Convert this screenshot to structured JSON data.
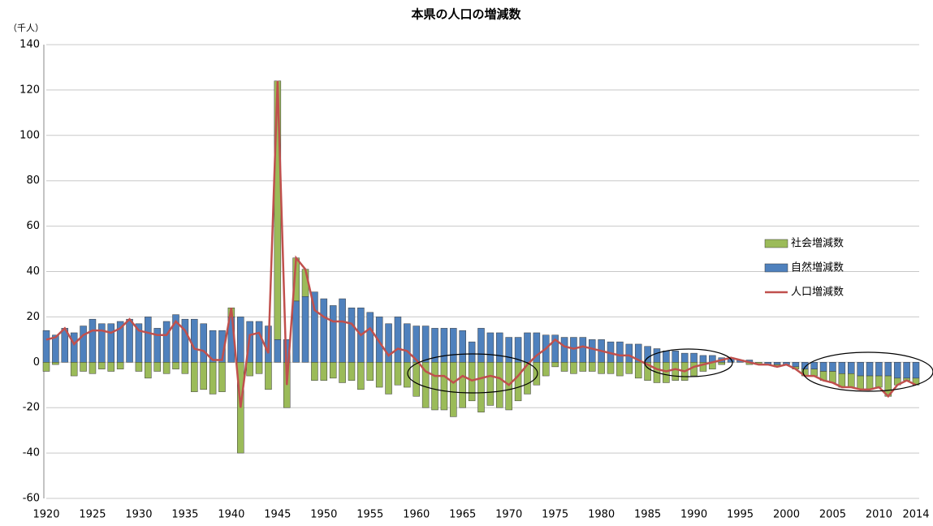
{
  "chart_data": {
    "type": "bar-line",
    "title": "本県の人口の増減数",
    "y_label": "（千人）",
    "x": [
      1920,
      1921,
      1922,
      1923,
      1924,
      1925,
      1926,
      1927,
      1928,
      1929,
      1930,
      1931,
      1932,
      1933,
      1934,
      1935,
      1936,
      1937,
      1938,
      1939,
      1940,
      1941,
      1942,
      1943,
      1944,
      1945,
      1946,
      1947,
      1948,
      1949,
      1950,
      1951,
      1952,
      1953,
      1954,
      1955,
      1956,
      1957,
      1958,
      1959,
      1960,
      1961,
      1962,
      1963,
      1964,
      1965,
      1966,
      1967,
      1968,
      1969,
      1970,
      1971,
      1972,
      1973,
      1974,
      1975,
      1976,
      1977,
      1978,
      1979,
      1980,
      1981,
      1982,
      1983,
      1984,
      1985,
      1986,
      1987,
      1988,
      1989,
      1990,
      1991,
      1992,
      1993,
      1994,
      1995,
      1996,
      1997,
      1998,
      1999,
      2000,
      2001,
      2002,
      2003,
      2004,
      2005,
      2006,
      2007,
      2008,
      2009,
      2010,
      2011,
      2012,
      2013,
      2014
    ],
    "series": [
      {
        "name": "社会増減数",
        "type": "bar",
        "color": "#9bbb59",
        "values": [
          -4,
          -1,
          0,
          -6,
          -4,
          -5,
          -3,
          -4,
          -3,
          0,
          -4,
          -7,
          -4,
          -5,
          -3,
          -5,
          -13,
          -12,
          -14,
          -13,
          4,
          -40,
          -6,
          -5,
          -12,
          114,
          -20,
          19,
          12,
          -8,
          -8,
          -7,
          -9,
          -8,
          -12,
          -8,
          -11,
          -14,
          -10,
          -11,
          -15,
          -20,
          -21,
          -21,
          -24,
          -20,
          -17,
          -22,
          -19,
          -20,
          -21,
          -17,
          -14,
          -10,
          -6,
          -2,
          -4,
          -5,
          -4,
          -4,
          -5,
          -5,
          -6,
          -5,
          -7,
          -8,
          -9,
          -9,
          -8,
          -8,
          -6,
          -4,
          -3,
          -1,
          0,
          0,
          -1,
          -1,
          0,
          -1,
          0,
          -1,
          -3,
          -3,
          -4,
          -5,
          -6,
          -6,
          -6,
          -6,
          -5,
          -9,
          -3,
          -1,
          -3
        ]
      },
      {
        "name": "自然増減数",
        "type": "bar",
        "color": "#4f81bd",
        "values": [
          14,
          12,
          15,
          13,
          16,
          19,
          17,
          17,
          18,
          19,
          17,
          20,
          15,
          18,
          21,
          19,
          19,
          17,
          14,
          14,
          20,
          20,
          18,
          18,
          16,
          10,
          10,
          27,
          29,
          31,
          28,
          25,
          28,
          24,
          24,
          22,
          20,
          17,
          20,
          17,
          16,
          16,
          15,
          15,
          15,
          14,
          9,
          15,
          13,
          13,
          11,
          11,
          13,
          13,
          12,
          12,
          11,
          11,
          11,
          10,
          10,
          9,
          9,
          8,
          8,
          7,
          6,
          5,
          5,
          4,
          4,
          3,
          3,
          2,
          2,
          1,
          1,
          0,
          -1,
          -1,
          -1,
          -2,
          -3,
          -3,
          -4,
          -4,
          -5,
          -5,
          -6,
          -6,
          -6,
          -6,
          -7,
          -7,
          -7
        ]
      },
      {
        "name": "人口増減数",
        "type": "line",
        "color": "#c0504d",
        "values": [
          10,
          11,
          15,
          8,
          12,
          14,
          14,
          13,
          15,
          19,
          14,
          13,
          12,
          12,
          18,
          14,
          6,
          5,
          1,
          1,
          24,
          -20,
          12,
          13,
          4,
          124,
          -10,
          46,
          41,
          23,
          20,
          18,
          18,
          17,
          12,
          15,
          9,
          3,
          6,
          5,
          1,
          -4,
          -6,
          -6,
          -9,
          -6,
          -8,
          -7,
          -6,
          -7,
          -10,
          -6,
          -1,
          3,
          6,
          10,
          7,
          6,
          7,
          6,
          5,
          4,
          3,
          3,
          1,
          -1,
          -3,
          -4,
          -3,
          -4,
          -2,
          -1,
          0,
          1,
          2,
          1,
          0,
          -1,
          -1,
          -2,
          -1,
          -3,
          -6,
          -6,
          -8,
          -9,
          -11,
          -11,
          -12,
          -12,
          -11,
          -15,
          -10,
          -8,
          -10
        ]
      }
    ],
    "xlim": [
      1920,
      2014
    ],
    "xticks": [
      1920,
      1925,
      1930,
      1935,
      1940,
      1945,
      1950,
      1955,
      1960,
      1965,
      1970,
      1975,
      1980,
      1985,
      1990,
      1995,
      2000,
      2005,
      2010,
      2014
    ],
    "ylim": [
      -60,
      140
    ],
    "yticks": [
      -60,
      -40,
      -20,
      0,
      20,
      40,
      60,
      80,
      100,
      120,
      140
    ],
    "grid": true
  }
}
